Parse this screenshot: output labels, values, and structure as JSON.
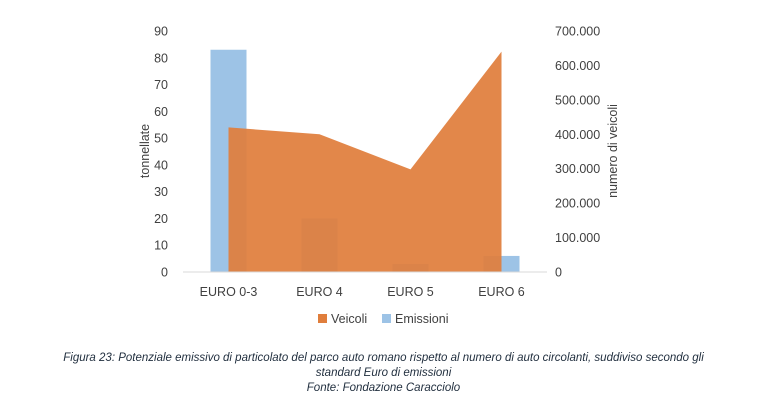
{
  "chart_data": {
    "type": "bar",
    "categories": [
      "EURO 0-3",
      "EURO 4",
      "EURO 5",
      "EURO 6"
    ],
    "series": [
      {
        "name": "Veicoli",
        "type": "area",
        "axis": "right",
        "color": "#E07E3C",
        "values": [
          420000,
          400000,
          298000,
          640000
        ]
      },
      {
        "name": "Emissioni",
        "type": "bar",
        "axis": "left",
        "color": "#9DC3E6",
        "values": [
          83,
          20,
          3,
          6
        ]
      }
    ],
    "ylabel": "tonnellate",
    "y2label": "numero di veicoli",
    "ylim": [
      0,
      90
    ],
    "y2lim": [
      0,
      700000
    ],
    "yticks": [
      "0",
      "10",
      "20",
      "30",
      "40",
      "50",
      "60",
      "70",
      "80",
      "90"
    ],
    "y2ticks": [
      "0",
      "100.000",
      "200.000",
      "300.000",
      "400.000",
      "500.000",
      "600.000",
      "700.000"
    ],
    "legend_position": "bottom",
    "grid": false
  },
  "caption": {
    "line1": "Figura 23: Potenziale emissivo di particolato del parco auto romano rispetto al numero di auto circolanti, suddiviso secondo gli",
    "line2": "standard Euro di emissioni",
    "line3": "Fonte: Fondazione Caracciolo"
  }
}
